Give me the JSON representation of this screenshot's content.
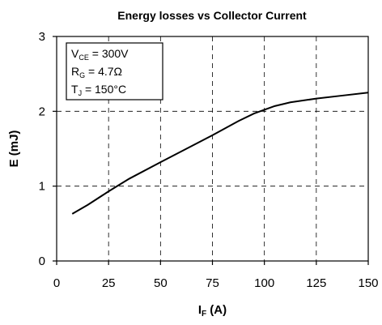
{
  "chart_data": {
    "type": "line",
    "title": "Energy losses vs Collector Current",
    "ylabel": "E (mJ)",
    "xlabel_main": "I",
    "xlabel_sub": "F",
    "xlabel_unit": " (A)",
    "xlim": [
      0,
      150
    ],
    "ylim": [
      0,
      3
    ],
    "xticks": [
      0,
      25,
      50,
      75,
      100,
      125,
      150
    ],
    "yticks": [
      0,
      1,
      2,
      3
    ],
    "grid": true,
    "conditions": [
      {
        "main": "V",
        "sub": "CE",
        "rest": " = 300V"
      },
      {
        "main": "R",
        "sub": "G",
        "rest": " = 4.7Ω"
      },
      {
        "main": "T",
        "sub": "J",
        "rest": " = 150°C"
      }
    ],
    "series": [
      {
        "x": [
          7.5,
          15,
          25,
          35,
          50,
          62.5,
          75,
          87.5,
          95,
          100,
          105,
          112.5,
          125,
          137.5,
          150
        ],
        "y": [
          0.63,
          0.75,
          0.93,
          1.1,
          1.32,
          1.5,
          1.68,
          1.87,
          1.97,
          2.02,
          2.07,
          2.12,
          2.17,
          2.21,
          2.25
        ]
      }
    ]
  }
}
